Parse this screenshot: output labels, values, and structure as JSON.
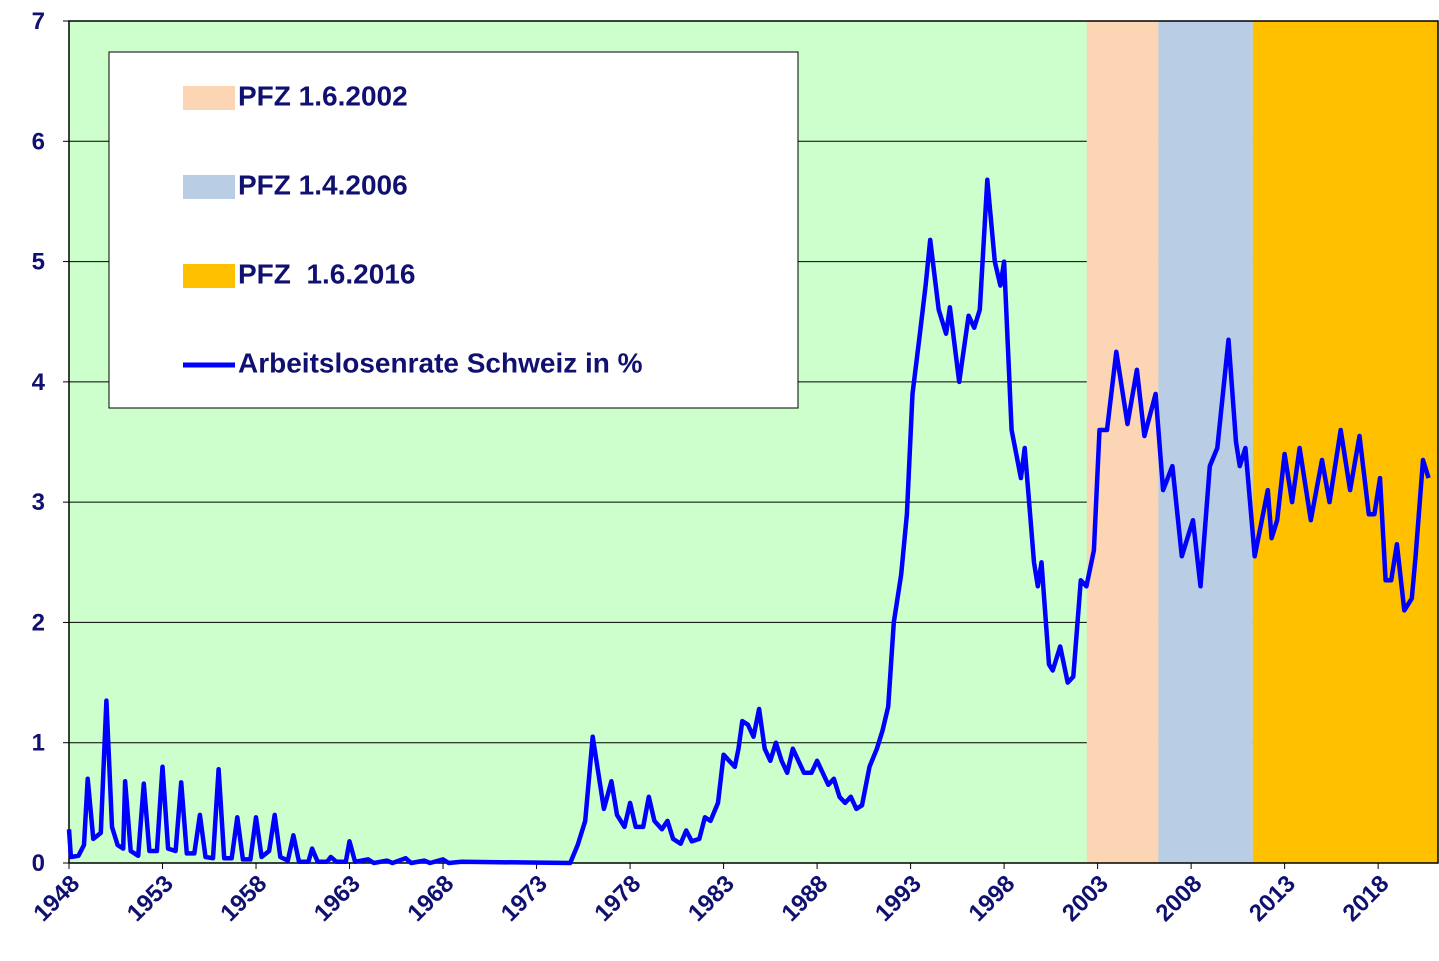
{
  "chart_data": {
    "type": "line",
    "background_color": "#ccffcc",
    "grid": true,
    "legend": "top-left",
    "bands": [
      {
        "name": "PFZ 1.6.2002",
        "color": "#fcd5b5",
        "start": 2002.42,
        "end": 2006.25
      },
      {
        "name": "PFZ 1.4.2006",
        "color": "#b9cde5",
        "start": 2006.25,
        "end": 2011.3
      },
      {
        "name": "PFZ  1.6.2016",
        "color": "#ffc000",
        "start": 2011.3,
        "end": 2021.2
      }
    ],
    "series": [
      {
        "name": "Arbeitslosenrate Schweiz in %",
        "color": "#0000ff",
        "x": [
          1948.0,
          1948.1,
          1948.5,
          1948.8,
          1949.0,
          1949.3,
          1949.7,
          1950.0,
          1950.3,
          1950.6,
          1950.9,
          1951.0,
          1951.3,
          1951.7,
          1952.0,
          1952.3,
          1952.7,
          1953.0,
          1953.3,
          1953.7,
          1954.0,
          1954.3,
          1954.7,
          1955.0,
          1955.3,
          1955.7,
          1956.0,
          1956.3,
          1956.7,
          1957.0,
          1957.3,
          1957.7,
          1958.0,
          1958.3,
          1958.7,
          1959.0,
          1959.3,
          1959.7,
          1960.0,
          1960.3,
          1960.8,
          1961.0,
          1961.3,
          1961.8,
          1962.0,
          1962.3,
          1962.8,
          1963.0,
          1963.3,
          1964.0,
          1964.3,
          1965.0,
          1965.3,
          1966.0,
          1966.3,
          1967.0,
          1967.3,
          1968.0,
          1968.3,
          1969.0,
          1974.8,
          1975.2,
          1975.6,
          1976.0,
          1976.3,
          1976.6,
          1977.0,
          1977.3,
          1977.7,
          1978.0,
          1978.3,
          1978.7,
          1979.0,
          1979.3,
          1979.7,
          1980.0,
          1980.3,
          1980.7,
          1981.0,
          1981.3,
          1981.7,
          1982.0,
          1982.3,
          1982.7,
          1983.0,
          1983.3,
          1983.6,
          1983.8,
          1984.0,
          1984.3,
          1984.6,
          1984.9,
          1985.2,
          1985.5,
          1985.8,
          1986.1,
          1986.4,
          1986.7,
          1987.0,
          1987.3,
          1987.7,
          1988.0,
          1988.3,
          1988.6,
          1988.9,
          1989.2,
          1989.5,
          1989.8,
          1990.1,
          1990.4,
          1990.8,
          1991.2,
          1991.5,
          1991.8,
          1992.1,
          1992.5,
          1992.8,
          1993.1,
          1993.5,
          1993.8,
          1994.05,
          1994.5,
          1994.9,
          1995.1,
          1995.6,
          1996.1,
          1996.4,
          1996.7,
          1997.1,
          1997.5,
          1997.8,
          1998.0,
          1998.4,
          1998.9,
          1999.1,
          1999.6,
          1999.8,
          2000.0,
          2000.4,
          2000.6,
          2001.0,
          2001.4,
          2001.7,
          2002.1,
          2002.4,
          2002.8,
          2003.1,
          2003.5,
          2004.0,
          2004.6,
          2005.1,
          2005.5,
          2006.1,
          2006.5,
          2007.0,
          2007.5,
          2008.1,
          2008.5,
          2009.0,
          2009.4,
          2010.0,
          2010.4,
          2010.6,
          2010.9,
          2011.4,
          2012.1,
          2012.3,
          2012.6,
          2013.0,
          2013.4,
          2013.8,
          2014.4,
          2015.0,
          2015.4,
          2016.0,
          2016.5,
          2017.0,
          2017.5,
          2017.8,
          2018.1,
          2018.4,
          2018.7,
          2019.0,
          2019.4,
          2019.8,
          2020.0,
          2020.4,
          2020.7
        ],
        "values": [
          0.28,
          0.05,
          0.06,
          0.15,
          0.7,
          0.2,
          0.25,
          1.35,
          0.3,
          0.15,
          0.12,
          0.68,
          0.1,
          0.06,
          0.66,
          0.1,
          0.1,
          0.8,
          0.12,
          0.1,
          0.67,
          0.08,
          0.08,
          0.4,
          0.05,
          0.04,
          0.78,
          0.04,
          0.04,
          0.38,
          0.03,
          0.03,
          0.38,
          0.05,
          0.1,
          0.4,
          0.05,
          0.02,
          0.23,
          0.01,
          0.01,
          0.12,
          0.01,
          0.01,
          0.05,
          0.01,
          0.01,
          0.18,
          0.01,
          0.03,
          0,
          0.02,
          0,
          0.04,
          0,
          0.02,
          0,
          0.03,
          0,
          0.01,
          0,
          0.15,
          0.35,
          1.05,
          0.75,
          0.45,
          0.68,
          0.4,
          0.3,
          0.5,
          0.3,
          0.3,
          0.55,
          0.35,
          0.28,
          0.35,
          0.2,
          0.16,
          0.27,
          0.18,
          0.2,
          0.38,
          0.35,
          0.5,
          0.9,
          0.85,
          0.8,
          0.95,
          1.18,
          1.15,
          1.05,
          1.28,
          0.95,
          0.85,
          1.0,
          0.85,
          0.75,
          0.95,
          0.85,
          0.75,
          0.75,
          0.85,
          0.75,
          0.65,
          0.7,
          0.55,
          0.5,
          0.55,
          0.45,
          0.48,
          0.8,
          0.95,
          1.1,
          1.3,
          2.0,
          2.4,
          2.9,
          3.9,
          4.4,
          4.8,
          5.18,
          4.6,
          4.4,
          4.62,
          4.0,
          4.55,
          4.45,
          4.6,
          5.68,
          5.0,
          4.8,
          5.0,
          3.6,
          3.2,
          3.45,
          2.5,
          2.3,
          2.5,
          1.65,
          1.6,
          1.8,
          1.5,
          1.55,
          2.35,
          2.3,
          2.6,
          3.6,
          3.6,
          4.25,
          3.65,
          4.1,
          3.55,
          3.9,
          3.1,
          3.3,
          2.55,
          2.85,
          2.3,
          3.3,
          3.45,
          4.35,
          3.5,
          3.3,
          3.45,
          2.55,
          3.1,
          2.7,
          2.85,
          3.4,
          3.0,
          3.45,
          2.85,
          3.35,
          3.0,
          3.6,
          3.1,
          3.55,
          2.9,
          2.9,
          3.2,
          2.35,
          2.35,
          2.65,
          2.1,
          2.2,
          2.55,
          3.35,
          3.2
        ]
      }
    ],
    "xlim": [
      1948,
      2021.2
    ],
    "xticks": [
      1948,
      1953,
      1958,
      1963,
      1968,
      1973,
      1978,
      1983,
      1988,
      1993,
      1998,
      2003,
      2008,
      2013,
      2018
    ],
    "ylim": [
      0,
      7
    ],
    "yticks": [
      0,
      1,
      2,
      3,
      4,
      5,
      6,
      7
    ]
  }
}
